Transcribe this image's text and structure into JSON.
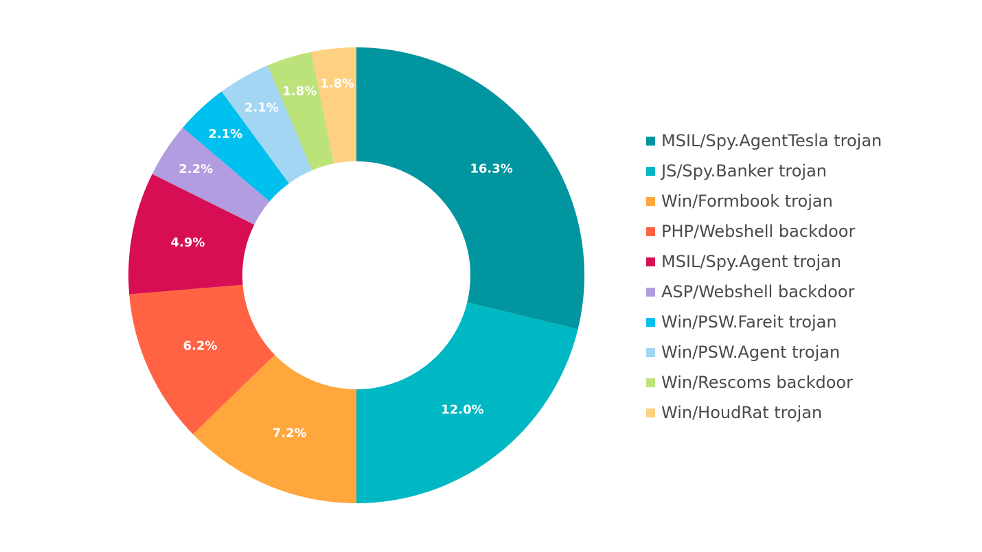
{
  "chart_data": {
    "type": "pie",
    "variant": "donut",
    "legend_position": "right",
    "categories": [
      "MSIL/Spy.AgentTesla trojan",
      "JS/Spy.Banker trojan",
      "Win/Formbook trojan",
      "PHP/Webshell backdoor",
      "MSIL/Spy.Agent trojan",
      "ASP/Webshell backdoor",
      "Win/PSW.Fareit trojan",
      "Win/PSW.Agent trojan",
      "Win/Rescoms backdoor",
      "Win/HoudRat trojan"
    ],
    "values": [
      16.3,
      12.0,
      7.2,
      6.2,
      4.9,
      2.2,
      2.1,
      2.1,
      1.8,
      1.8
    ],
    "data_labels": [
      "16.3%",
      "12.0%",
      "7.2%",
      "6.2%",
      "4.9%",
      "2.2%",
      "2.1%",
      "2.1%",
      "1.8%",
      "1.8%"
    ],
    "colors": [
      "#00959f",
      "#00b8c3",
      "#ffa73d",
      "#ff6344",
      "#d80e55",
      "#b19de0",
      "#00c0ef",
      "#a3d6f2",
      "#bce27a",
      "#fdd082"
    ]
  }
}
